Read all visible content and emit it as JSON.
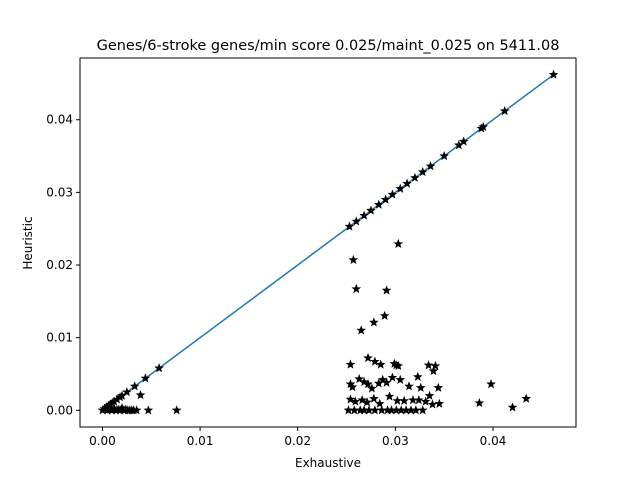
{
  "chart_data": {
    "type": "scatter",
    "title": "Genes/6-stroke genes/min score 0.025/maint_0.025 on 5411.08",
    "xlabel": "Exhaustive",
    "ylabel": "Heuristic",
    "xlim": [
      -0.0023,
      0.0485
    ],
    "ylim": [
      -0.0023,
      0.0485
    ],
    "xticks": [
      0.0,
      0.01,
      0.02,
      0.03,
      0.04
    ],
    "xtick_labels": [
      "0.00",
      "0.01",
      "0.02",
      "0.03",
      "0.04"
    ],
    "yticks": [
      0.0,
      0.01,
      0.02,
      0.03,
      0.04
    ],
    "ytick_labels": [
      "0.00",
      "0.01",
      "0.02",
      "0.03",
      "0.04"
    ],
    "grid": false,
    "legend": "none",
    "line": {
      "color": "#1f77b4",
      "x": [
        0.0,
        0.0462
      ],
      "y": [
        0.0,
        0.0462
      ]
    },
    "marker": {
      "symbol": "star",
      "color": "#000000"
    },
    "series": [
      {
        "points": [
          [
            0.0,
            0.0
          ],
          [
            0.0002,
            0.0002
          ],
          [
            0.0004,
            0.0004
          ],
          [
            0.0006,
            0.0006
          ],
          [
            0.0008,
            0.0008
          ],
          [
            0.001,
            0.001
          ],
          [
            0.0012,
            0.0012
          ],
          [
            0.0015,
            0.0015
          ],
          [
            0.0018,
            0.0018
          ],
          [
            0.002,
            0.002
          ],
          [
            0.0025,
            0.0025
          ],
          [
            0.0033,
            0.0033
          ],
          [
            0.0044,
            0.0044
          ],
          [
            0.0058,
            0.0058
          ],
          [
            0.0253,
            0.0253
          ],
          [
            0.026,
            0.026
          ],
          [
            0.0268,
            0.0268
          ],
          [
            0.0275,
            0.0275
          ],
          [
            0.0283,
            0.0283
          ],
          [
            0.029,
            0.029
          ],
          [
            0.0297,
            0.0297
          ],
          [
            0.0305,
            0.0305
          ],
          [
            0.0312,
            0.0312
          ],
          [
            0.032,
            0.032
          ],
          [
            0.0328,
            0.0328
          ],
          [
            0.0336,
            0.0336
          ],
          [
            0.035,
            0.035
          ],
          [
            0.0365,
            0.0365
          ],
          [
            0.037,
            0.037
          ],
          [
            0.0388,
            0.0388
          ],
          [
            0.039,
            0.039
          ],
          [
            0.0412,
            0.0412
          ],
          [
            0.0462,
            0.0462
          ],
          [
            0.0005,
            0.0
          ],
          [
            0.0008,
            0.0001
          ],
          [
            0.001,
            0.0
          ],
          [
            0.0012,
            0.0002
          ],
          [
            0.0014,
            0.0
          ],
          [
            0.0016,
            0.0001
          ],
          [
            0.0018,
            0.0
          ],
          [
            0.002,
            0.0003
          ],
          [
            0.0022,
            0.0
          ],
          [
            0.0024,
            0.0001
          ],
          [
            0.0026,
            0.0
          ],
          [
            0.0028,
            0.0
          ],
          [
            0.003,
            0.0
          ],
          [
            0.0032,
            0.0
          ],
          [
            0.0035,
            0.0
          ],
          [
            0.0039,
            0.0021
          ],
          [
            0.0047,
            0.0
          ],
          [
            0.0076,
            0.0
          ],
          [
            0.0303,
            0.0229
          ],
          [
            0.0257,
            0.0207
          ],
          [
            0.026,
            0.0167
          ],
          [
            0.0291,
            0.0165
          ],
          [
            0.0289,
            0.013
          ],
          [
            0.0278,
            0.0121
          ],
          [
            0.0265,
            0.011
          ],
          [
            0.0254,
            0.0063
          ],
          [
            0.0272,
            0.0072
          ],
          [
            0.0279,
            0.0067
          ],
          [
            0.0285,
            0.0063
          ],
          [
            0.0299,
            0.0064
          ],
          [
            0.0301,
            0.0062
          ],
          [
            0.0303,
            0.0061
          ],
          [
            0.0334,
            0.0062
          ],
          [
            0.0341,
            0.0061
          ],
          [
            0.0339,
            0.0054
          ],
          [
            0.0323,
            0.0046
          ],
          [
            0.0254,
            0.0036
          ],
          [
            0.0256,
            0.0032
          ],
          [
            0.0263,
            0.0043
          ],
          [
            0.0268,
            0.0039
          ],
          [
            0.0272,
            0.0036
          ],
          [
            0.0276,
            0.003
          ],
          [
            0.0283,
            0.0037
          ],
          [
            0.0287,
            0.0042
          ],
          [
            0.0291,
            0.0038
          ],
          [
            0.0297,
            0.0045
          ],
          [
            0.0305,
            0.0042
          ],
          [
            0.0314,
            0.0033
          ],
          [
            0.0326,
            0.0031
          ],
          [
            0.0344,
            0.0031
          ],
          [
            0.0335,
            0.002
          ],
          [
            0.0254,
            0.0015
          ],
          [
            0.0259,
            0.0012
          ],
          [
            0.0266,
            0.0014
          ],
          [
            0.0271,
            0.0011
          ],
          [
            0.0278,
            0.0016
          ],
          [
            0.0284,
            0.0009
          ],
          [
            0.0294,
            0.0019
          ],
          [
            0.0302,
            0.0013
          ],
          [
            0.0309,
            0.0013
          ],
          [
            0.0318,
            0.0014
          ],
          [
            0.0324,
            0.0014
          ],
          [
            0.0331,
            0.0012
          ],
          [
            0.0338,
            0.0008
          ],
          [
            0.0345,
            0.0009
          ],
          [
            0.0252,
            0.0
          ],
          [
            0.0258,
            0.0
          ],
          [
            0.0264,
            0.0
          ],
          [
            0.0268,
            0.0
          ],
          [
            0.0273,
            0.0
          ],
          [
            0.0279,
            0.0
          ],
          [
            0.0286,
            0.0
          ],
          [
            0.0292,
            0.0
          ],
          [
            0.0296,
            0.0
          ],
          [
            0.0301,
            0.0
          ],
          [
            0.0306,
            0.0
          ],
          [
            0.0311,
            0.0
          ],
          [
            0.0316,
            0.0
          ],
          [
            0.0321,
            0.0
          ],
          [
            0.0328,
            0.0
          ],
          [
            0.0386,
            0.001
          ],
          [
            0.0398,
            0.0036
          ],
          [
            0.042,
            0.0004
          ],
          [
            0.0434,
            0.0016
          ]
        ]
      }
    ]
  }
}
